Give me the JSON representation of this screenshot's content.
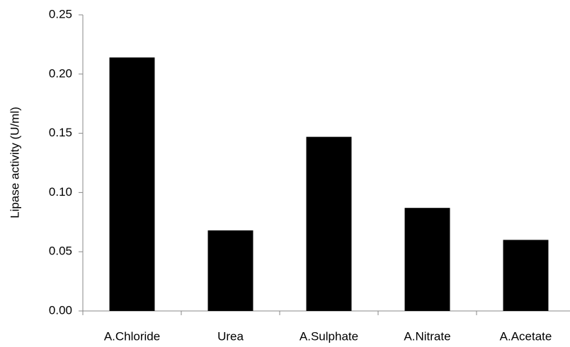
{
  "chart_data": {
    "type": "bar",
    "y_label": "Lipase activity (U/ml)",
    "categories": [
      "A.Chloride",
      "Urea",
      "A.Sulphate",
      "A.Nitrate",
      "A.Acetate"
    ],
    "values": [
      0.214,
      0.068,
      0.147,
      0.087,
      0.06
    ],
    "color": "#000000",
    "ylim": [
      0,
      0.25
    ],
    "yticks": [
      {
        "value": 0,
        "label": "0.00"
      },
      0.05,
      {
        "value": 0.1,
        "label": "0.10"
      },
      0.15,
      {
        "value": 0.2,
        "label": "0.20"
      },
      0.25
    ],
    "grid": false
  }
}
